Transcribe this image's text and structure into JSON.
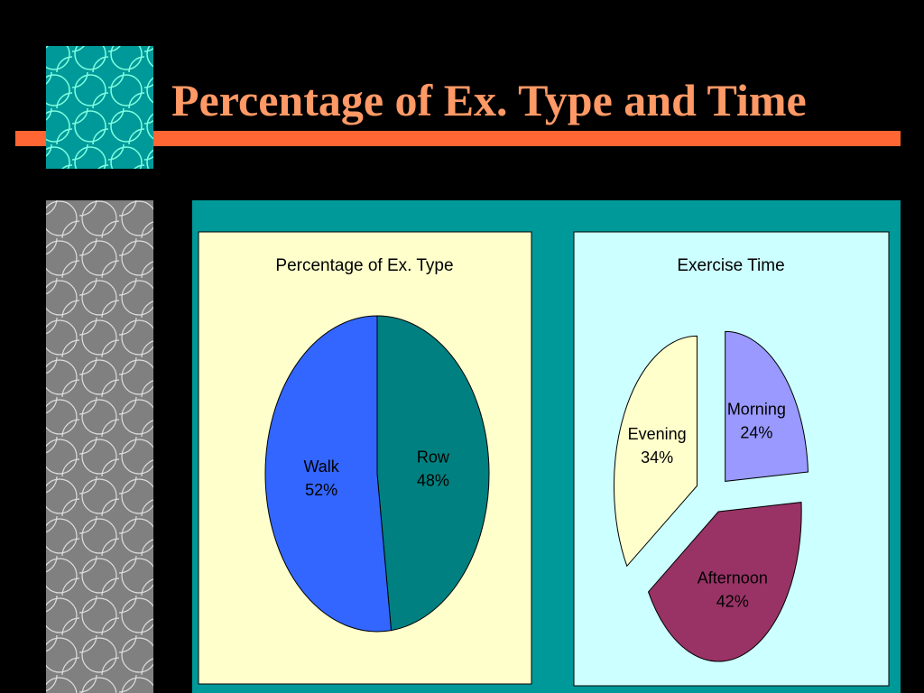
{
  "slide": {
    "title": "Percentage of Ex. Type and Time"
  },
  "chart_data": [
    {
      "type": "pie",
      "title": "Percentage of Ex. Type",
      "categories": [
        "Row",
        "Walk"
      ],
      "values": [
        48,
        52
      ],
      "value_labels": [
        "48%",
        "52%"
      ],
      "colors": [
        "#008080",
        "#3366ff"
      ]
    },
    {
      "type": "pie",
      "title": "Exercise Time",
      "categories": [
        "Morning",
        "Afternoon",
        "Evening"
      ],
      "values": [
        24,
        42,
        34
      ],
      "value_labels": [
        "24%",
        "42%",
        "34%"
      ],
      "colors": [
        "#9999ff",
        "#993366",
        "#ffffcc"
      ],
      "exploded": true
    }
  ]
}
